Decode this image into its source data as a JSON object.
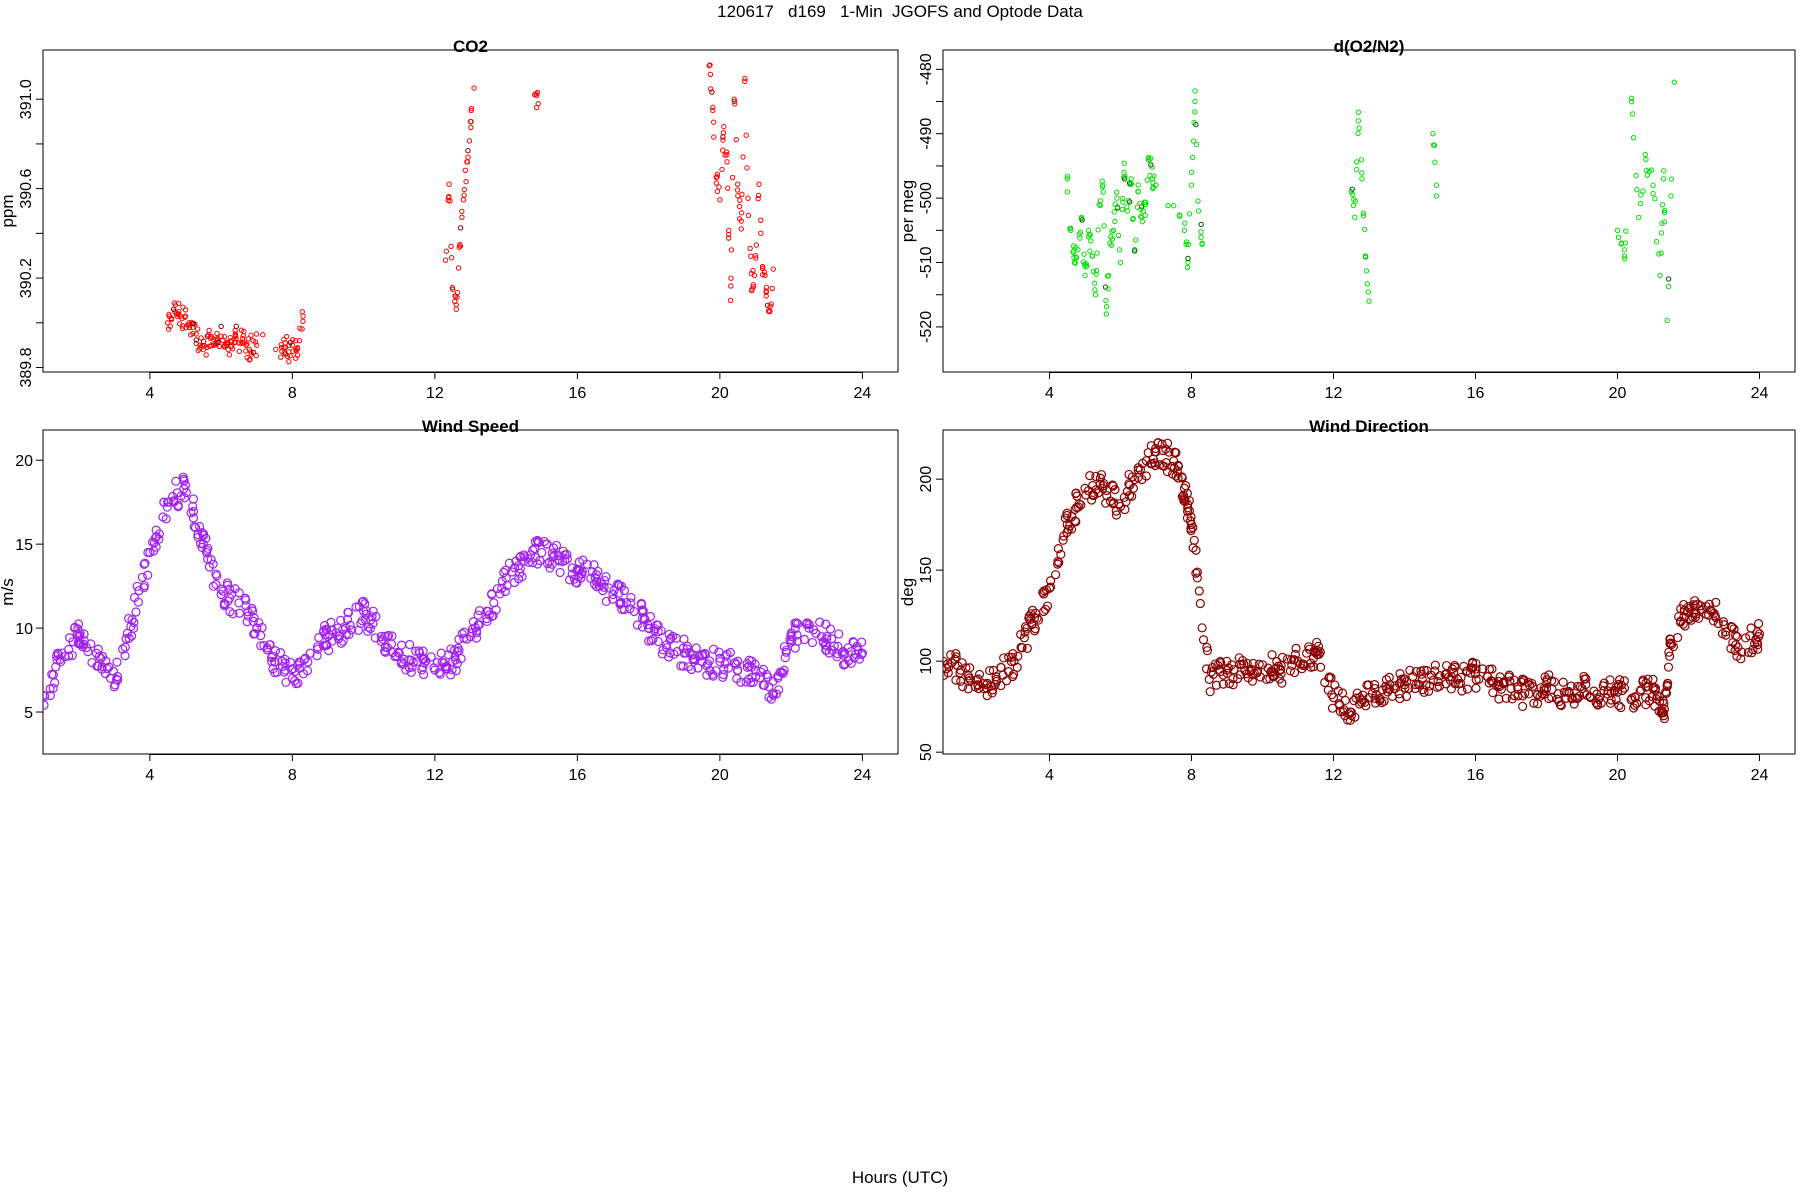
{
  "figure": {
    "suptitle": "120617   d169   1-Min  JGOFS and Optode Data",
    "xlabel": "Hours (UTC)"
  },
  "chart_data": [
    {
      "type": "scatter",
      "title": "CO2",
      "ylabel": "ppm",
      "xlim": [
        1,
        25
      ],
      "ylim": [
        389.78,
        391.22
      ],
      "x_ticks": [
        4,
        8,
        12,
        16,
        20,
        24
      ],
      "y_ticks": [
        389.8,
        390.2,
        390.6,
        391.0
      ],
      "y_tick_labels": [
        "389.8",
        "390.2",
        "390.6",
        "391.0"
      ],
      "color": "#ff0000",
      "highlight_color": "#7a0000",
      "marker": "small-circle",
      "series": [
        {
          "x": [
            4.5,
            4.6,
            4.7,
            4.8,
            4.9,
            5.0,
            5.1,
            5.2,
            5.3,
            5.4,
            5.5,
            5.6,
            5.7,
            5.8,
            5.9,
            6.0,
            6.1,
            6.2,
            6.3,
            6.4,
            6.5,
            6.6,
            6.7,
            6.8,
            6.9,
            7.0,
            7.7,
            7.8,
            7.9,
            8.0,
            8.1,
            8.2,
            8.3,
            12.3,
            12.4,
            12.5,
            12.6,
            12.7,
            12.8,
            12.9,
            13.0,
            13.1,
            14.8,
            14.9,
            19.7,
            19.8,
            19.9,
            20.0,
            20.1,
            20.2,
            20.3,
            20.4,
            20.5,
            20.6,
            20.7,
            20.8,
            20.9,
            21.0,
            21.1,
            21.2,
            21.3,
            21.4,
            21.5
          ],
          "y": [
            390.0,
            390.02,
            390.05,
            390.04,
            390.02,
            390.03,
            390.0,
            389.98,
            389.95,
            389.9,
            389.88,
            389.89,
            389.93,
            389.9,
            389.92,
            389.94,
            389.9,
            389.88,
            389.92,
            389.95,
            389.91,
            389.93,
            389.9,
            389.88,
            389.92,
            389.9,
            389.89,
            389.91,
            389.87,
            389.9,
            389.88,
            389.92,
            390.03,
            390.28,
            390.62,
            390.15,
            390.08,
            390.35,
            390.55,
            390.72,
            390.9,
            391.05,
            391.02,
            390.98,
            391.15,
            390.95,
            390.65,
            390.55,
            390.85,
            390.72,
            390.1,
            391.0,
            390.62,
            390.42,
            391.08,
            390.48,
            390.15,
            390.3,
            390.62,
            390.25,
            390.12,
            390.05,
            390.24
          ]
        }
      ]
    },
    {
      "type": "scatter",
      "title": "d(O2/N2)",
      "ylabel": "per meg",
      "xlim": [
        1,
        25
      ],
      "ylim": [
        -527,
        -477
      ],
      "x_ticks": [
        4,
        8,
        12,
        16,
        20,
        24
      ],
      "y_ticks": [
        -520,
        -510,
        -500,
        -490,
        -480
      ],
      "y_tick_labels": [
        "-520",
        "-510",
        "-500",
        "-490",
        "-480"
      ],
      "color": "#00e000",
      "highlight_color": "#005500",
      "marker": "small-circle",
      "series": [
        {
          "x": [
            4.5,
            4.6,
            4.7,
            4.8,
            4.9,
            5.0,
            5.1,
            5.2,
            5.3,
            5.4,
            5.5,
            5.6,
            5.7,
            5.8,
            5.9,
            6.0,
            6.1,
            6.2,
            6.3,
            6.4,
            6.5,
            6.6,
            6.7,
            6.8,
            6.9,
            7.0,
            7.8,
            7.9,
            8.0,
            8.1,
            8.2,
            8.3,
            12.5,
            12.6,
            12.7,
            12.8,
            12.9,
            13.0,
            14.8,
            14.9,
            20.0,
            20.2,
            20.4,
            20.6,
            20.8,
            21.0,
            21.2,
            21.3,
            21.4,
            21.6
          ],
          "y": [
            -497,
            -505,
            -510,
            -508,
            -503,
            -512,
            -506,
            -509,
            -515,
            -501,
            -498,
            -518,
            -507,
            -505,
            -500,
            -510,
            -496,
            -502,
            -497,
            -508,
            -499,
            -503,
            -501,
            -494,
            -497,
            -498,
            -505,
            -510,
            -496,
            -485,
            -502,
            -507,
            -499,
            -503,
            -488,
            -497,
            -509,
            -516,
            -490,
            -498,
            -505,
            -509,
            -485,
            -503,
            -494,
            -498,
            -512,
            -497,
            -519,
            -482
          ]
        }
      ]
    },
    {
      "type": "scatter",
      "title": "Wind Speed",
      "ylabel": "m/s",
      "xlim": [
        1,
        25
      ],
      "ylim": [
        2.5,
        21.8
      ],
      "x_ticks": [
        4,
        8,
        12,
        16,
        20,
        24
      ],
      "y_ticks": [
        5,
        10,
        15,
        20
      ],
      "y_tick_labels": [
        "5",
        "10",
        "15",
        "20"
      ],
      "color": "#a020f0",
      "marker": "open-circle",
      "series": [
        {
          "x": [
            1.0,
            1.5,
            2.0,
            2.5,
            3.0,
            3.5,
            4.0,
            4.5,
            5.0,
            5.5,
            6.0,
            6.5,
            7.0,
            7.5,
            8.0,
            8.5,
            9.0,
            9.5,
            10.0,
            10.5,
            11.0,
            11.5,
            12.0,
            12.5,
            13.0,
            13.5,
            14.0,
            14.5,
            15.0,
            15.5,
            16.0,
            16.5,
            17.0,
            17.5,
            18.0,
            18.5,
            19.0,
            19.5,
            20.0,
            20.5,
            21.0,
            21.5,
            22.0,
            22.5,
            23.0,
            23.5,
            24.0
          ],
          "y": [
            6.0,
            8.0,
            9.5,
            8.5,
            6.5,
            10.5,
            14.5,
            17.5,
            18.5,
            15.0,
            12.0,
            11.5,
            10.0,
            8.0,
            7.0,
            8.5,
            9.5,
            10.0,
            11.0,
            9.5,
            8.5,
            8.0,
            7.5,
            8.0,
            9.5,
            11.0,
            13.0,
            14.0,
            14.5,
            14.0,
            13.5,
            13.0,
            12.0,
            11.5,
            10.0,
            9.0,
            8.5,
            8.0,
            8.0,
            7.5,
            7.5,
            6.0,
            9.5,
            10.0,
            9.5,
            8.5,
            8.5
          ]
        }
      ]
    },
    {
      "type": "scatter",
      "title": "Wind Direction",
      "ylabel": "deg",
      "xlim": [
        1,
        25
      ],
      "ylim": [
        49,
        227
      ],
      "x_ticks": [
        4,
        8,
        12,
        16,
        20,
        24
      ],
      "y_ticks": [
        50,
        100,
        150,
        200
      ],
      "y_tick_labels": [
        "50",
        "100",
        "150",
        "200"
      ],
      "color": "#8b0000",
      "marker": "open-circle",
      "series": [
        {
          "x": [
            1.0,
            1.5,
            2.0,
            2.5,
            3.0,
            3.5,
            4.0,
            4.5,
            5.0,
            5.5,
            6.0,
            6.5,
            7.0,
            7.5,
            7.8,
            8.0,
            8.5,
            9.0,
            9.5,
            10.0,
            10.5,
            11.0,
            11.5,
            12.0,
            12.5,
            13.0,
            13.5,
            14.0,
            14.5,
            15.0,
            15.5,
            16.0,
            16.5,
            17.0,
            17.5,
            18.0,
            18.5,
            19.0,
            19.5,
            20.0,
            20.5,
            21.0,
            21.3,
            21.5,
            22.0,
            22.5,
            23.0,
            23.5,
            24.0
          ],
          "y": [
            100,
            95,
            85,
            90,
            100,
            120,
            140,
            175,
            195,
            195,
            185,
            205,
            215,
            210,
            195,
            175,
            90,
            95,
            95,
            98,
            95,
            100,
            105,
            80,
            72,
            80,
            85,
            87,
            90,
            92,
            90,
            93,
            88,
            85,
            82,
            85,
            83,
            85,
            80,
            83,
            80,
            85,
            70,
            110,
            130,
            130,
            120,
            105,
            115
          ]
        }
      ]
    }
  ]
}
